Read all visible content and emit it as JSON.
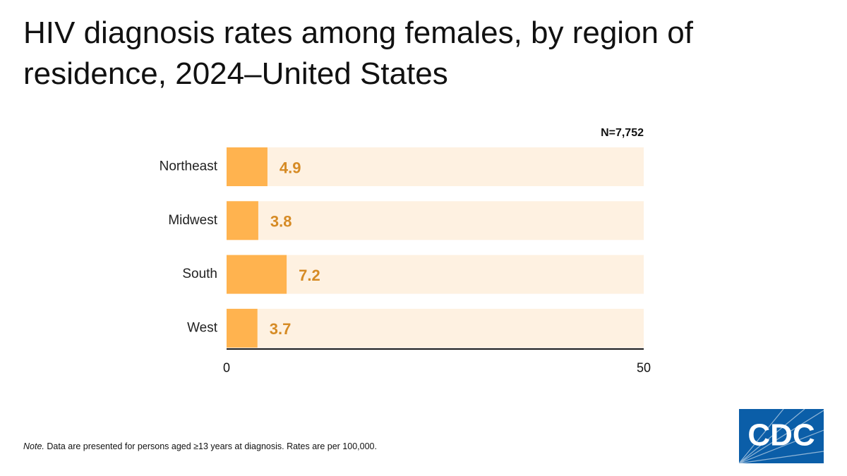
{
  "chart_data": {
    "type": "bar",
    "orientation": "horizontal",
    "title": "HIV diagnosis rates among females, by region of residence, 2024–United States",
    "annotation": "N=7,752",
    "categories": [
      "Northeast",
      "Midwest",
      "South",
      "West"
    ],
    "values": [
      4.9,
      3.8,
      7.2,
      3.7
    ],
    "color": "#ffb34f",
    "track_color": "#fef1e1",
    "label_color": "#d68b25",
    "xlim": [
      0,
      50
    ],
    "xticks": [
      0,
      50
    ]
  },
  "note": {
    "label": "Note.",
    "text": "Data are presented for persons aged ≥13 years at diagnosis. Rates are per 100,000."
  },
  "logo": {
    "text": "CDC"
  }
}
